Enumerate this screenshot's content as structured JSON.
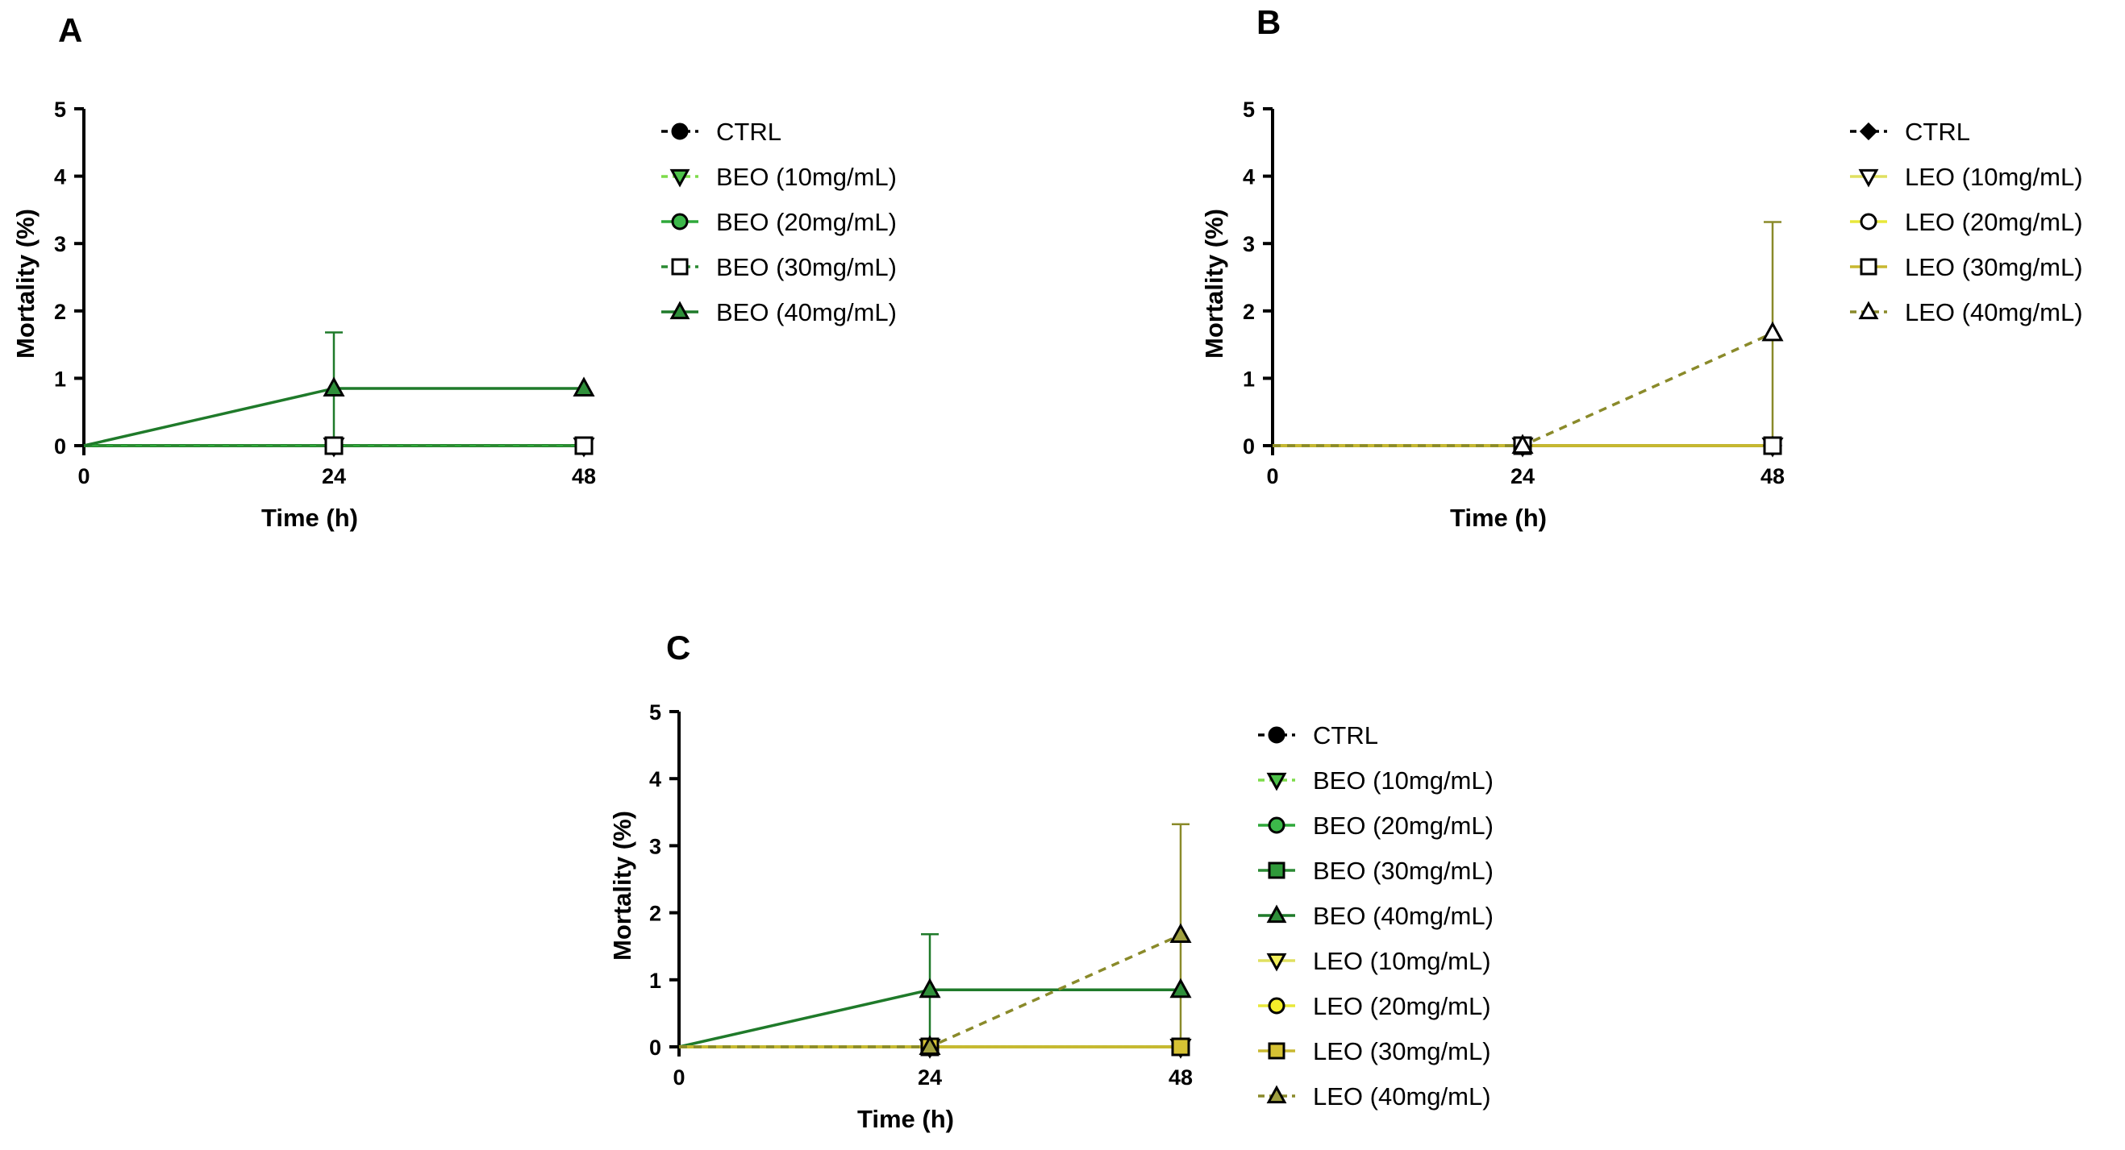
{
  "chart_data": [
    {
      "type": "line",
      "panel_label": "A",
      "xlabel": "Time (h)",
      "ylabel": "Mortality (%)",
      "x": [
        0,
        24,
        48
      ],
      "xlim": [
        0,
        48
      ],
      "ylim": [
        0,
        5
      ],
      "xticks": [
        "0",
        "24",
        "48"
      ],
      "yticks": [
        "0",
        "1",
        "2",
        "3",
        "4",
        "5"
      ],
      "grid": false,
      "legend_position": "right",
      "series": [
        {
          "name": "CTRL",
          "values": [
            0,
            0,
            0
          ],
          "color": "#000000",
          "dash": "dash",
          "marker": "circle",
          "marker_fill": "#000000"
        },
        {
          "name": "BEO (10mg/mL)",
          "values": [
            0,
            0,
            0
          ],
          "color": "#7ddc4a",
          "dash": "dash",
          "marker": "triangle-down",
          "marker_fill": "#4ec24a"
        },
        {
          "name": "BEO (20mg/mL)",
          "values": [
            0,
            0,
            0
          ],
          "color": "#2fa83a",
          "dash": "solid",
          "marker": "circle",
          "marker_fill": "#3cb84a"
        },
        {
          "name": "BEO (30mg/mL)",
          "values": [
            0,
            0,
            0
          ],
          "color": "#2b8a33",
          "dash": "dash",
          "marker": "square",
          "marker_fill": "#ffffff"
        },
        {
          "name": "BEO (40mg/mL)",
          "values": [
            0,
            0.85,
            0.85
          ],
          "color": "#1f7a2a",
          "dash": "solid",
          "marker": "triangle-up",
          "marker_fill": "#2f8f3a",
          "error": [
            0,
            0.83,
            0
          ]
        }
      ]
    },
    {
      "type": "line",
      "panel_label": "B",
      "xlabel": "Time (h)",
      "ylabel": "Mortality (%)",
      "x": [
        0,
        24,
        48
      ],
      "xlim": [
        0,
        48
      ],
      "ylim": [
        0,
        5
      ],
      "xticks": [
        "0",
        "24",
        "48"
      ],
      "yticks": [
        "0",
        "1",
        "2",
        "3",
        "4",
        "5"
      ],
      "grid": false,
      "legend_position": "right",
      "series": [
        {
          "name": "CTRL",
          "values": [
            0,
            0,
            0
          ],
          "color": "#000000",
          "dash": "dash",
          "marker": "diamond",
          "marker_fill": "#000000"
        },
        {
          "name": "LEO (10mg/mL)",
          "values": [
            0,
            0,
            0
          ],
          "color": "#e0e060",
          "dash": "solid",
          "marker": "triangle-down",
          "marker_fill": "#ffffff"
        },
        {
          "name": "LEO (20mg/mL)",
          "values": [
            0,
            0,
            0
          ],
          "color": "#e8e83a",
          "dash": "solid",
          "marker": "circle",
          "marker_fill": "#ffffff"
        },
        {
          "name": "LEO (30mg/mL)",
          "values": [
            0,
            0,
            0
          ],
          "color": "#c8b830",
          "dash": "solid",
          "marker": "square",
          "marker_fill": "#ffffff"
        },
        {
          "name": "LEO (40mg/mL)",
          "values": [
            0,
            0,
            1.67
          ],
          "color": "#8a8a2a",
          "dash": "dash",
          "marker": "triangle-up",
          "marker_fill": "#ffffff",
          "error": [
            0,
            0,
            1.65
          ]
        }
      ]
    },
    {
      "type": "line",
      "panel_label": "C",
      "xlabel": "Time (h)",
      "ylabel": "Mortality (%)",
      "x": [
        0,
        24,
        48
      ],
      "xlim": [
        0,
        48
      ],
      "ylim": [
        0,
        5
      ],
      "xticks": [
        "0",
        "24",
        "48"
      ],
      "yticks": [
        "0",
        "1",
        "2",
        "3",
        "4",
        "5"
      ],
      "grid": false,
      "legend_position": "right",
      "series": [
        {
          "name": "CTRL",
          "values": [
            0,
            0,
            0
          ],
          "color": "#000000",
          "dash": "dash",
          "marker": "circle",
          "marker_fill": "#000000"
        },
        {
          "name": "BEO (10mg/mL)",
          "values": [
            0,
            0,
            0
          ],
          "color": "#7ddc4a",
          "dash": "dot",
          "marker": "triangle-down",
          "marker_fill": "#4ec24a"
        },
        {
          "name": "BEO (20mg/mL)",
          "values": [
            0,
            0,
            0
          ],
          "color": "#2fa83a",
          "dash": "solid",
          "marker": "circle",
          "marker_fill": "#3cb84a"
        },
        {
          "name": "BEO (30mg/mL)",
          "values": [
            0,
            0,
            0
          ],
          "color": "#2b8a33",
          "dash": "solid",
          "marker": "square",
          "marker_fill": "#2f9a3a"
        },
        {
          "name": "BEO (40mg/mL)",
          "values": [
            0,
            0.85,
            0.85
          ],
          "color": "#1f7a2a",
          "dash": "solid",
          "marker": "triangle-up",
          "marker_fill": "#2f8f3a",
          "error": [
            0,
            0.83,
            0
          ]
        },
        {
          "name": "LEO (10mg/mL)",
          "values": [
            0,
            0,
            0
          ],
          "color": "#e0e060",
          "dash": "solid",
          "marker": "triangle-down",
          "marker_fill": "#f2ef5a"
        },
        {
          "name": "LEO (20mg/mL)",
          "values": [
            0,
            0,
            0
          ],
          "color": "#e8e83a",
          "dash": "solid",
          "marker": "circle",
          "marker_fill": "#f5ee2a"
        },
        {
          "name": "LEO (30mg/mL)",
          "values": [
            0,
            0,
            0
          ],
          "color": "#c8b830",
          "dash": "solid",
          "marker": "square",
          "marker_fill": "#d6c234"
        },
        {
          "name": "LEO (40mg/mL)",
          "values": [
            0,
            0,
            1.67
          ],
          "color": "#8a8a2a",
          "dash": "dash",
          "marker": "triangle-up",
          "marker_fill": "#a0a040",
          "error": [
            0,
            0,
            1.65
          ]
        }
      ]
    }
  ]
}
